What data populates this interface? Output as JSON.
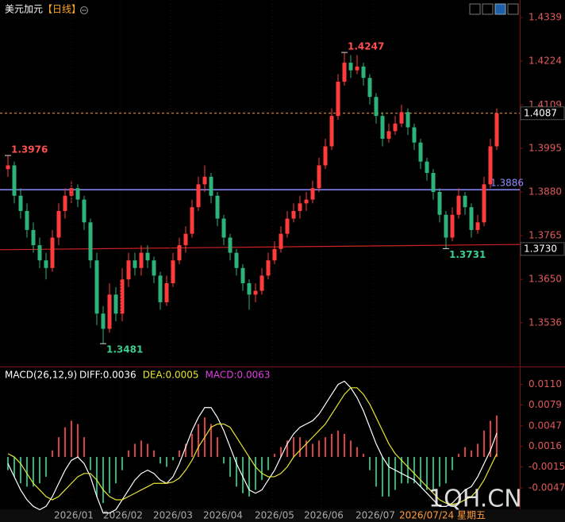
{
  "chart_data": [
    {
      "type": "candlestick",
      "symbol": "美元加元",
      "period": "【日线】",
      "ylim": [
        1.3425,
        1.4385
      ],
      "yticks": [
        1.4339,
        1.4224,
        1.4109,
        1.3995,
        {
          "value": 1.388,
          "label": "1.3880"
        },
        1.3765,
        {
          "value": 1.365,
          "label": "1.3650"
        },
        1.3536
      ],
      "up_color": "#ff3b3b",
      "down_color": "#2db37a",
      "ohlc": [
        [
          1.394,
          1.3976,
          1.392,
          1.395
        ],
        [
          1.395,
          1.396,
          1.385,
          1.387
        ],
        [
          1.387,
          1.389,
          1.381,
          1.383
        ],
        [
          1.383,
          1.385,
          1.376,
          1.378
        ],
        [
          1.378,
          1.38,
          1.372,
          1.374
        ],
        [
          1.374,
          1.376,
          1.368,
          1.37
        ],
        [
          1.37,
          1.372,
          1.365,
          1.368
        ],
        [
          1.368,
          1.378,
          1.367,
          1.376
        ],
        [
          1.376,
          1.385,
          1.374,
          1.383
        ],
        [
          1.383,
          1.389,
          1.381,
          1.387
        ],
        [
          1.387,
          1.391,
          1.385,
          1.389
        ],
        [
          1.389,
          1.39,
          1.384,
          1.386
        ],
        [
          1.386,
          1.387,
          1.378,
          1.38
        ],
        [
          1.38,
          1.381,
          1.368,
          1.37
        ],
        [
          1.37,
          1.372,
          1.353,
          1.356
        ],
        [
          1.356,
          1.358,
          1.3481,
          1.352
        ],
        [
          1.352,
          1.364,
          1.351,
          1.361
        ],
        [
          1.361,
          1.363,
          1.354,
          1.356
        ],
        [
          1.356,
          1.368,
          1.354,
          1.365
        ],
        [
          1.365,
          1.372,
          1.363,
          1.37
        ],
        [
          1.37,
          1.372,
          1.366,
          1.368
        ],
        [
          1.368,
          1.374,
          1.366,
          1.372
        ],
        [
          1.372,
          1.374,
          1.368,
          1.37
        ],
        [
          1.37,
          1.371,
          1.364,
          1.366
        ],
        [
          1.366,
          1.367,
          1.357,
          1.359
        ],
        [
          1.359,
          1.366,
          1.358,
          1.364
        ],
        [
          1.364,
          1.372,
          1.363,
          1.37
        ],
        [
          1.37,
          1.376,
          1.369,
          1.374
        ],
        [
          1.374,
          1.379,
          1.372,
          1.377
        ],
        [
          1.377,
          1.386,
          1.376,
          1.384
        ],
        [
          1.384,
          1.392,
          1.383,
          1.39
        ],
        [
          1.39,
          1.395,
          1.388,
          1.392
        ],
        [
          1.392,
          1.393,
          1.385,
          1.387
        ],
        [
          1.387,
          1.388,
          1.379,
          1.381
        ],
        [
          1.381,
          1.382,
          1.374,
          1.376
        ],
        [
          1.376,
          1.377,
          1.37,
          1.372
        ],
        [
          1.372,
          1.373,
          1.366,
          1.368
        ],
        [
          1.368,
          1.369,
          1.362,
          1.364
        ],
        [
          1.364,
          1.365,
          1.357,
          1.361
        ],
        [
          1.361,
          1.364,
          1.359,
          1.362
        ],
        [
          1.362,
          1.368,
          1.361,
          1.366
        ],
        [
          1.366,
          1.372,
          1.365,
          1.37
        ],
        [
          1.37,
          1.375,
          1.369,
          1.373
        ],
        [
          1.373,
          1.379,
          1.372,
          1.377
        ],
        [
          1.377,
          1.383,
          1.376,
          1.381
        ],
        [
          1.381,
          1.385,
          1.38,
          1.383
        ],
        [
          1.383,
          1.387,
          1.381,
          1.385
        ],
        [
          1.385,
          1.388,
          1.383,
          1.386
        ],
        [
          1.386,
          1.391,
          1.385,
          1.389
        ],
        [
          1.389,
          1.397,
          1.388,
          1.395
        ],
        [
          1.395,
          1.402,
          1.394,
          1.4
        ],
        [
          1.4,
          1.41,
          1.399,
          1.408
        ],
        [
          1.408,
          1.419,
          1.407,
          1.417
        ],
        [
          1.417,
          1.4247,
          1.416,
          1.422
        ],
        [
          1.422,
          1.424,
          1.418,
          1.42
        ],
        [
          1.42,
          1.424,
          1.419,
          1.421
        ],
        [
          1.421,
          1.422,
          1.416,
          1.418
        ],
        [
          1.418,
          1.419,
          1.411,
          1.413
        ],
        [
          1.413,
          1.414,
          1.406,
          1.408
        ],
        [
          1.408,
          1.409,
          1.4,
          1.402
        ],
        [
          1.402,
          1.406,
          1.401,
          1.404
        ],
        [
          1.404,
          1.408,
          1.403,
          1.406
        ],
        [
          1.406,
          1.411,
          1.405,
          1.409
        ],
        [
          1.409,
          1.41,
          1.403,
          1.405
        ],
        [
          1.405,
          1.406,
          1.399,
          1.401
        ],
        [
          1.401,
          1.402,
          1.394,
          1.396
        ],
        [
          1.396,
          1.397,
          1.391,
          1.393
        ],
        [
          1.393,
          1.394,
          1.386,
          1.388
        ],
        [
          1.388,
          1.389,
          1.38,
          1.382
        ],
        [
          1.382,
          1.383,
          1.3731,
          1.376
        ],
        [
          1.376,
          1.384,
          1.375,
          1.382
        ],
        [
          1.382,
          1.389,
          1.381,
          1.387
        ],
        [
          1.387,
          1.388,
          1.382,
          1.384
        ],
        [
          1.384,
          1.385,
          1.376,
          1.378
        ],
        [
          1.378,
          1.382,
          1.377,
          1.38
        ],
        [
          1.38,
          1.392,
          1.379,
          1.39
        ],
        [
          1.39,
          1.402,
          1.389,
          1.4
        ],
        [
          1.4,
          1.41,
          1.399,
          1.4087
        ]
      ],
      "high_labels": [
        1.3976,
        1.4247
      ],
      "low_labels": [
        1.3481,
        1.3731
      ],
      "current_price": {
        "value": 1.4087,
        "label": "1.4087",
        "color": "#ff9a3c"
      },
      "hline": {
        "value": 1.3886,
        "label": "1.3886",
        "color": "#8c8cff"
      },
      "trendline": {
        "start": 1.3728,
        "end": 1.3742,
        "label": {
          "value": 1.373,
          "label": "1.3730"
        },
        "color": "#d02020"
      },
      "x_labels": [
        "2026/01",
        "2026/02",
        "2026/03",
        "2026/04",
        "2026/05",
        "2026/06",
        "2026/07"
      ],
      "cursor_label": "2026/07/24 星期五",
      "watermark": "1QH.CN"
    },
    {
      "type": "macd",
      "title": "MACD(26,12,9)",
      "legend": [
        {
          "text": "DIFF:0.0036",
          "color": "#ffffff"
        },
        {
          "text": "DEA:0.0005",
          "color": "#e6e633"
        },
        {
          "text": "MACD:0.0063",
          "color": "#e040e0"
        }
      ],
      "ylim": [
        -0.0077,
        0.0118
      ],
      "yticks": [
        {
          "value": 0.011,
          "label": "0.0110"
        },
        0.0079,
        0.0047,
        0.0016,
        -0.0015,
        -0.0047
      ],
      "hist": {
        "up_color": "#e04040",
        "down_color": "#2db37a",
        "values": [
          -0.002,
          -0.003,
          -0.004,
          -0.0045,
          -0.0045,
          -0.004,
          -0.003,
          0.001,
          0.003,
          0.0045,
          0.0055,
          0.005,
          0.003,
          -0.002,
          -0.006,
          -0.007,
          -0.0055,
          -0.004,
          -0.002,
          0.001,
          0.002,
          0.0025,
          0.002,
          0.001,
          -0.001,
          -0.0015,
          -0.0005,
          0.001,
          0.002,
          0.0035,
          0.005,
          0.006,
          0.005,
          0.003,
          -0.001,
          -0.003,
          -0.0045,
          -0.0055,
          -0.006,
          -0.005,
          -0.0035,
          -0.002,
          0.0005,
          0.0015,
          0.0025,
          0.003,
          0.003,
          0.0025,
          0.002,
          0.0025,
          0.003,
          0.0035,
          0.004,
          0.0035,
          0.0025,
          0.0015,
          0.0005,
          -0.002,
          -0.0045,
          -0.006,
          -0.006,
          -0.005,
          -0.004,
          -0.004,
          -0.004,
          -0.0045,
          -0.005,
          -0.005,
          -0.0045,
          -0.004,
          -0.002,
          0.0005,
          0.0015,
          0.001,
          0.002,
          0.004,
          0.0055,
          0.0063
        ]
      },
      "series": [
        {
          "name": "DIFF",
          "color": "#ffffff",
          "values": [
            -0.001,
            -0.003,
            -0.005,
            -0.0065,
            -0.0075,
            -0.008,
            -0.0075,
            -0.006,
            -0.004,
            -0.002,
            -0.0005,
            0,
            -0.001,
            -0.003,
            -0.006,
            -0.0085,
            -0.0085,
            -0.008,
            -0.0065,
            -0.005,
            -0.0035,
            -0.0025,
            -0.002,
            -0.0025,
            -0.0035,
            -0.004,
            -0.003,
            -0.001,
            0.0015,
            0.004,
            0.006,
            0.0075,
            0.0075,
            0.006,
            0.004,
            0.0015,
            -0.001,
            -0.003,
            -0.005,
            -0.0055,
            -0.005,
            -0.0035,
            -0.002,
            0,
            0.002,
            0.0035,
            0.0045,
            0.005,
            0.0055,
            0.0065,
            0.008,
            0.0095,
            0.011,
            0.0115,
            0.0105,
            0.009,
            0.007,
            0.0045,
            0.002,
            0,
            -0.0015,
            -0.002,
            -0.0025,
            -0.003,
            -0.0035,
            -0.0045,
            -0.0055,
            -0.0065,
            -0.0075,
            -0.0075,
            -0.007,
            -0.006,
            -0.005,
            -0.0045,
            -0.003,
            -0.001,
            0.001,
            0.0036
          ]
        },
        {
          "name": "DEA",
          "color": "#e6e633",
          "values": [
            0.0005,
            0,
            -0.001,
            -0.0025,
            -0.004,
            -0.005,
            -0.006,
            -0.0065,
            -0.006,
            -0.005,
            -0.004,
            -0.003,
            -0.0025,
            -0.0025,
            -0.0035,
            -0.005,
            -0.006,
            -0.0065,
            -0.0065,
            -0.006,
            -0.0055,
            -0.005,
            -0.0045,
            -0.004,
            -0.004,
            -0.004,
            -0.0038,
            -0.0032,
            -0.002,
            -0.0005,
            0.0015,
            0.003,
            0.0045,
            0.005,
            0.005,
            0.0045,
            0.003,
            0.0015,
            0,
            -0.0015,
            -0.0025,
            -0.003,
            -0.003,
            -0.0025,
            -0.0015,
            0,
            0.001,
            0.002,
            0.003,
            0.004,
            0.005,
            0.0065,
            0.008,
            0.0095,
            0.0105,
            0.0105,
            0.0095,
            0.008,
            0.006,
            0.004,
            0.002,
            0.0005,
            -0.0005,
            -0.0015,
            -0.0025,
            -0.0035,
            -0.0045,
            -0.0055,
            -0.0065,
            -0.007,
            -0.0072,
            -0.007,
            -0.0065,
            -0.006,
            -0.005,
            -0.0035,
            -0.0015,
            0.0005
          ]
        }
      ]
    }
  ]
}
